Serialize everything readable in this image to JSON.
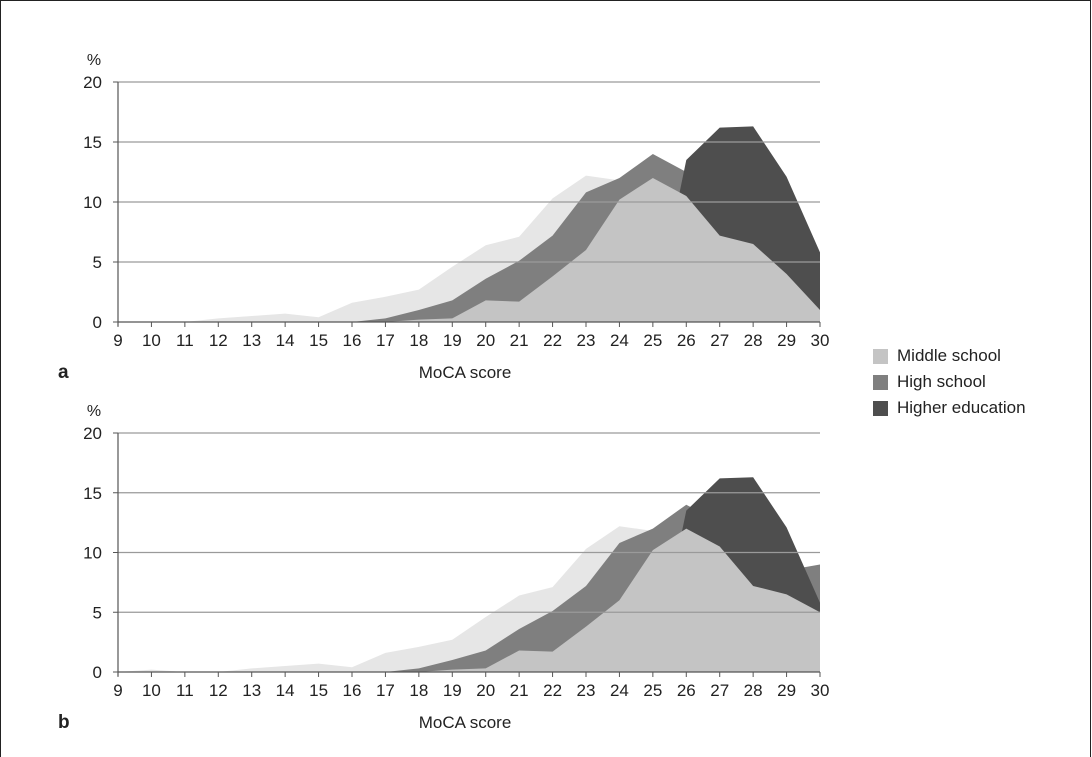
{
  "colors": {
    "middle_school": "#c4c4c4",
    "high_school": "#7f7f7f",
    "higher_education": "#4e4e4e",
    "light_band": "#e6e6e6",
    "gridline": "#9a9a9a",
    "axis": "#555555",
    "text": "#222222"
  },
  "legend": [
    {
      "label": "Middle school",
      "color": "#c4c4c4"
    },
    {
      "label": "High school",
      "color": "#7f7f7f"
    },
    {
      "label": "Higher education",
      "color": "#4e4e4e"
    }
  ],
  "chart_data": [
    {
      "type": "area",
      "panel_label": "a",
      "xlabel": "MoCA score",
      "ylabel": "%",
      "x": [
        9,
        10,
        11,
        12,
        13,
        14,
        15,
        16,
        17,
        18,
        19,
        20,
        21,
        22,
        23,
        24,
        25,
        26,
        27,
        28,
        29,
        30
      ],
      "ylim": [
        0,
        20
      ],
      "yticks": [
        0,
        5,
        10,
        15,
        20
      ],
      "grid": true,
      "legend_position": "right",
      "series": [
        {
          "values": [
            0,
            0,
            0,
            0.3,
            0.5,
            0.7,
            0.4,
            1.6,
            2.1,
            2.7,
            4.6,
            6.4,
            7.1,
            10.3,
            12.2,
            11.8,
            12.0,
            10.5,
            7.2,
            6.5,
            4.0,
            1.0
          ]
        },
        {
          "values": [
            0,
            0,
            0,
            0,
            0,
            0,
            0,
            0,
            0.3,
            1.0,
            1.8,
            3.6,
            5.1,
            7.2,
            10.8,
            12.0,
            14.0,
            12.5,
            13.3,
            8.5,
            6.5,
            2.5
          ]
        },
        {
          "values": [
            0,
            0,
            0,
            0,
            0,
            0,
            0,
            0,
            0,
            0,
            0,
            0,
            0,
            0,
            0,
            0,
            0,
            13.5,
            16.2,
            16.3,
            12.1,
            5.8
          ]
        },
        {
          "name": "Middle school",
          "values": [
            0,
            0,
            0,
            0,
            0,
            0,
            0,
            0,
            0,
            0.2,
            0.3,
            1.8,
            1.7,
            3.8,
            6.0,
            10.2,
            12.0,
            10.5,
            7.2,
            6.5,
            4.0,
            1.0
          ]
        }
      ]
    },
    {
      "type": "area",
      "panel_label": "b",
      "xlabel": "MoCA score",
      "ylabel": "%",
      "x": [
        9,
        10,
        11,
        12,
        13,
        14,
        15,
        16,
        17,
        18,
        19,
        20,
        21,
        22,
        23,
        24,
        25,
        26,
        27,
        28,
        29,
        30
      ],
      "ylim": [
        0,
        20
      ],
      "yticks": [
        0,
        5,
        10,
        15,
        20
      ],
      "grid": true,
      "legend_position": "right",
      "series": [
        {
          "values": [
            0,
            0.2,
            0,
            0,
            0.3,
            0.5,
            0.7,
            0.4,
            1.6,
            2.1,
            2.7,
            4.6,
            6.4,
            7.1,
            10.3,
            12.2,
            11.8,
            12.0,
            10.5,
            7.2,
            6.5,
            4.0
          ]
        },
        {
          "values": [
            0,
            0,
            0,
            0,
            0,
            0,
            0,
            0,
            0,
            0.3,
            1.0,
            1.8,
            3.6,
            5.1,
            7.2,
            10.8,
            12.0,
            14.0,
            12.5,
            13.3,
            8.5,
            9.0
          ]
        },
        {
          "values": [
            0,
            0,
            0,
            0,
            0,
            0,
            0,
            0,
            0,
            0,
            0,
            0,
            0,
            0,
            0,
            0,
            0,
            13.5,
            16.2,
            16.3,
            12.1,
            5.8
          ]
        },
        {
          "name": "Middle school",
          "values": [
            0,
            0,
            0,
            0,
            0,
            0,
            0,
            0,
            0,
            0,
            0.2,
            0.3,
            1.8,
            1.7,
            3.8,
            6.0,
            10.2,
            12.0,
            10.5,
            7.2,
            6.5,
            5.0
          ]
        }
      ]
    }
  ]
}
